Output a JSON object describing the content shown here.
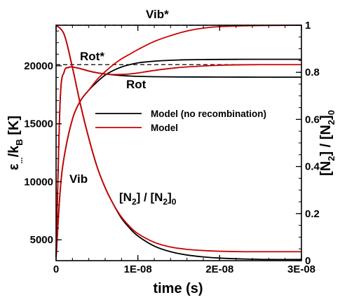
{
  "chart_data": {
    "type": "line",
    "xlabel": "time (s)",
    "ylabel_left": "ε_.../k_B [K]",
    "ylabel_right": "[N2] / [N2]0",
    "xlim": [
      0,
      3e-08
    ],
    "ylim_left": [
      3200,
      23500
    ],
    "ylim_right": [
      0,
      1
    ],
    "x_ticks": [
      {
        "value": 0,
        "label": "0"
      },
      {
        "value": 1e-08,
        "label": "1E-08"
      },
      {
        "value": 2e-08,
        "label": "2E-08"
      },
      {
        "value": 3e-08,
        "label": "3E-08"
      }
    ],
    "y_ticks_left": [
      {
        "value": 5000,
        "label": "5000"
      },
      {
        "value": 10000,
        "label": "10000"
      },
      {
        "value": 15000,
        "label": "15000"
      },
      {
        "value": 20000,
        "label": "20000"
      }
    ],
    "y_ticks_right": [
      {
        "value": 0,
        "label": "0"
      },
      {
        "value": 0.2,
        "label": "0.2"
      },
      {
        "value": 0.4,
        "label": "0.4"
      },
      {
        "value": 0.6,
        "label": "0.6"
      },
      {
        "value": 0.8,
        "label": "0.8"
      },
      {
        "value": 1,
        "label": "1"
      }
    ],
    "legend": [
      {
        "name": "Model (no recombination)",
        "color": "#000000"
      },
      {
        "name": "Model",
        "color": "#cc0000"
      }
    ],
    "reference_lines": [
      {
        "label": "Vib*",
        "y": 23500
      },
      {
        "label": "Rot*",
        "y": 20100
      }
    ],
    "annotations": {
      "vib": "Vib",
      "rot": "Rot",
      "n2_label": "[N2] / [N2]0"
    },
    "series": [
      {
        "name": "Model (no recombination)",
        "curve": "Vib",
        "color": "#000000",
        "axis": "left",
        "x": [
          0,
          5e-10,
          1e-09,
          2e-09,
          3e-09,
          4e-09,
          5e-09,
          6e-09,
          7e-09,
          8e-09,
          9e-09,
          1e-08,
          1.2e-08,
          1.4e-08,
          1.6e-08,
          1.8e-08,
          2e-08,
          2.3e-08,
          2.6e-08,
          3e-08
        ],
        "y": [
          3500,
          9200,
          12200,
          15400,
          17000,
          17900,
          18600,
          19200,
          19600,
          19900,
          20100,
          20250,
          20400,
          20480,
          20520,
          20540,
          20550,
          20560,
          20560,
          20560
        ]
      },
      {
        "name": "Model",
        "curve": "Vib",
        "color": "#cc0000",
        "axis": "left",
        "x": [
          0,
          5e-10,
          1e-09,
          2e-09,
          3e-09,
          4e-09,
          5e-09,
          6e-09,
          7e-09,
          8e-09,
          9e-09,
          1e-08,
          1.2e-08,
          1.4e-08,
          1.6e-08,
          1.8e-08,
          2e-08,
          2.3e-08,
          2.6e-08,
          3e-08
        ],
        "y": [
          3500,
          9200,
          12200,
          15400,
          17000,
          17900,
          18800,
          19500,
          20100,
          20600,
          21000,
          21400,
          22100,
          22600,
          23000,
          23250,
          23380,
          23450,
          23480,
          23500
        ]
      },
      {
        "name": "Model (no recombination)",
        "curve": "Rot",
        "color": "#000000",
        "axis": "left",
        "x": [
          0,
          5e-10,
          1e-09,
          1.5e-09,
          2e-09,
          3e-09,
          4e-09,
          5e-09,
          6e-09,
          7e-09,
          8e-09,
          9e-09,
          1e-08,
          1.2e-08,
          1.5e-08,
          2e-08,
          2.5e-08,
          3e-08
        ],
        "y": [
          3500,
          17000,
          19500,
          19850,
          19900,
          19750,
          19550,
          19400,
          19300,
          19220,
          19160,
          19120,
          19090,
          19060,
          19040,
          19030,
          19020,
          19020
        ]
      },
      {
        "name": "Model",
        "curve": "Rot",
        "color": "#cc0000",
        "axis": "left",
        "x": [
          0,
          5e-10,
          1e-09,
          1.5e-09,
          2e-09,
          3e-09,
          4e-09,
          5e-09,
          6e-09,
          7e-09,
          8e-09,
          9e-09,
          1e-08,
          1.2e-08,
          1.5e-08,
          2e-08,
          2.5e-08,
          3e-08
        ],
        "y": [
          3500,
          17000,
          19500,
          19850,
          19900,
          19750,
          19550,
          19400,
          19300,
          19250,
          19260,
          19300,
          19380,
          19600,
          19850,
          20050,
          20100,
          20100
        ]
      },
      {
        "name": "Model (no recombination)",
        "curve": "[N2]/[N2]0",
        "color": "#000000",
        "axis": "right",
        "x": [
          0,
          1e-09,
          2e-09,
          3e-09,
          4e-09,
          5e-09,
          6e-09,
          7e-09,
          8e-09,
          9e-09,
          1e-08,
          1.2e-08,
          1.4e-08,
          1.6e-08,
          1.8e-08,
          2e-08,
          2.3e-08,
          2.6e-08,
          3e-08
        ],
        "y": [
          1.0,
          0.96,
          0.82,
          0.66,
          0.52,
          0.4,
          0.31,
          0.24,
          0.18,
          0.138,
          0.105,
          0.062,
          0.038,
          0.024,
          0.016,
          0.011,
          0.007,
          0.005,
          0.005
        ]
      },
      {
        "name": "Model",
        "curve": "[N2]/[N2]0",
        "color": "#cc0000",
        "axis": "right",
        "x": [
          0,
          1e-09,
          2e-09,
          3e-09,
          4e-09,
          5e-09,
          6e-09,
          7e-09,
          8e-09,
          9e-09,
          1e-08,
          1.2e-08,
          1.4e-08,
          1.6e-08,
          1.8e-08,
          2e-08,
          2.3e-08,
          2.6e-08,
          3e-08
        ],
        "y": [
          1.0,
          0.96,
          0.82,
          0.66,
          0.52,
          0.4,
          0.31,
          0.24,
          0.185,
          0.145,
          0.115,
          0.078,
          0.058,
          0.048,
          0.043,
          0.04,
          0.038,
          0.038,
          0.038
        ]
      }
    ]
  }
}
